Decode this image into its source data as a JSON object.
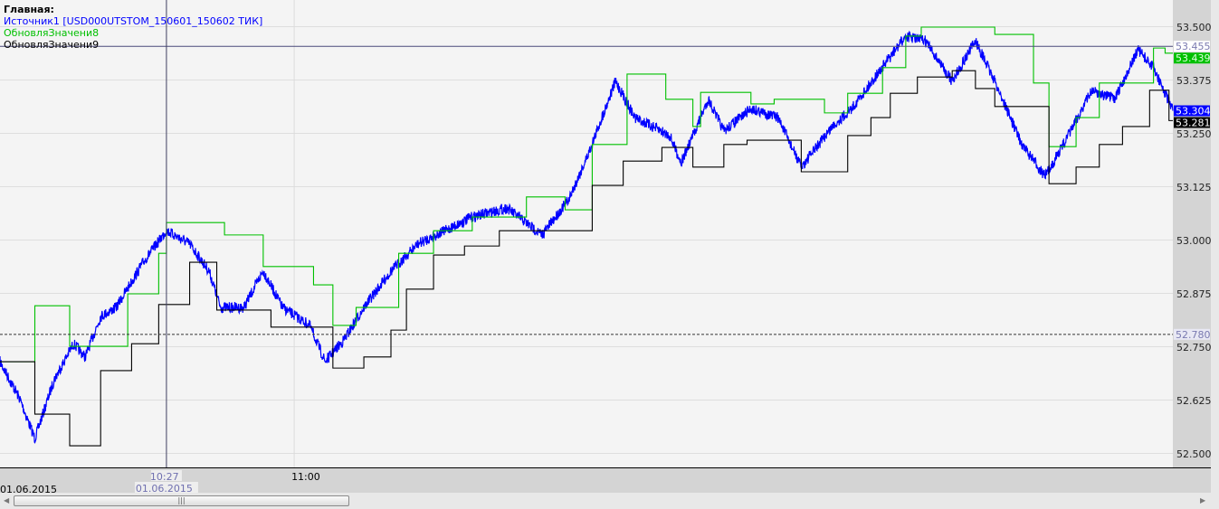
{
  "legend": {
    "title": "Главная:",
    "items": [
      {
        "label": "Источник1 [USD000UTSTOM_150601_150602 ТИК]",
        "color": "#0000ff"
      },
      {
        "label": "ОбновляЗначени8",
        "color": "#00c000"
      },
      {
        "label": "ОбновляЗначени9",
        "color": "#000000"
      }
    ]
  },
  "chart_data": {
    "type": "line",
    "ylim": [
      52.5,
      53.5
    ],
    "xlim": [
      "09:44",
      "14:47"
    ],
    "y_ticks": [
      "53.500",
      "53.375",
      "53.250",
      "53.125",
      "53.000",
      "52.875",
      "52.750",
      "52.625",
      "52.500"
    ],
    "x_ticks": [
      {
        "time": "11:00",
        "label": "11:00"
      }
    ],
    "x_start_label": "01.06.2015",
    "grid": true,
    "crosshair": {
      "time": "10:27",
      "time_label": "10:27",
      "date_label": "01.06.2015"
    },
    "hlines": [
      {
        "value": 53.455,
        "label": "53.455",
        "color": "#4a4a7a",
        "style": "solid"
      },
      {
        "value": 52.78,
        "label": "52.780",
        "color": "#333333",
        "style": "dashed"
      }
    ],
    "series": [
      {
        "name": "Источник1 [USD000UTSTOM_150601_150602 ТИК]",
        "color": "#0000ff",
        "kind": "tick",
        "last_label": "53.304",
        "points": [
          [
            "09:44",
            52.716
          ],
          [
            "09:49",
            52.631
          ],
          [
            "09:53",
            52.536
          ],
          [
            "09:58",
            52.674
          ],
          [
            "10:03",
            52.758
          ],
          [
            "10:06",
            52.727
          ],
          [
            "10:10",
            52.822
          ],
          [
            "10:14",
            52.843
          ],
          [
            "10:21",
            52.949
          ],
          [
            "10:27",
            53.023
          ],
          [
            "10:33",
            52.992
          ],
          [
            "10:38",
            52.928
          ],
          [
            "10:41",
            52.843
          ],
          [
            "10:47",
            52.843
          ],
          [
            "10:52",
            52.928
          ],
          [
            "10:57",
            52.843
          ],
          [
            "11:04",
            52.801
          ],
          [
            "11:08",
            52.716
          ],
          [
            "11:13",
            52.769
          ],
          [
            "11:18",
            52.843
          ],
          [
            "11:25",
            52.928
          ],
          [
            "11:32",
            52.992
          ],
          [
            "11:39",
            53.023
          ],
          [
            "11:46",
            53.055
          ],
          [
            "11:55",
            53.076
          ],
          [
            "12:04",
            53.013
          ],
          [
            "12:11",
            53.097
          ],
          [
            "12:16",
            53.203
          ],
          [
            "12:23",
            53.373
          ],
          [
            "12:28",
            53.288
          ],
          [
            "12:37",
            53.246
          ],
          [
            "12:40",
            53.182
          ],
          [
            "12:47",
            53.331
          ],
          [
            "12:51",
            53.256
          ],
          [
            "12:58",
            53.309
          ],
          [
            "13:05",
            53.288
          ],
          [
            "13:11",
            53.172
          ],
          [
            "13:19",
            53.267
          ],
          [
            "13:24",
            53.309
          ],
          [
            "13:31",
            53.394
          ],
          [
            "13:38",
            53.479
          ],
          [
            "13:43",
            53.468
          ],
          [
            "13:50",
            53.373
          ],
          [
            "13:56",
            53.468
          ],
          [
            "14:01",
            53.373
          ],
          [
            "14:08",
            53.225
          ],
          [
            "14:14",
            53.15
          ],
          [
            "14:20",
            53.246
          ],
          [
            "14:26",
            53.352
          ],
          [
            "14:32",
            53.331
          ],
          [
            "14:38",
            53.447
          ],
          [
            "14:42",
            53.405
          ],
          [
            "14:47",
            53.304
          ]
        ]
      },
      {
        "name": "ОбновляЗначени8",
        "color": "#00c000",
        "kind": "step",
        "last_label": "53.439",
        "points": [
          [
            "09:44",
            52.716
          ],
          [
            "09:53",
            52.847
          ],
          [
            "10:02",
            52.752
          ],
          [
            "10:17",
            52.875
          ],
          [
            "10:25",
            52.97
          ],
          [
            "10:27",
            53.042
          ],
          [
            "10:42",
            53.013
          ],
          [
            "10:52",
            52.939
          ],
          [
            "11:05",
            52.896
          ],
          [
            "11:10",
            52.801
          ],
          [
            "11:16",
            52.843
          ],
          [
            "11:27",
            52.97
          ],
          [
            "11:36",
            53.023
          ],
          [
            "11:46",
            53.055
          ],
          [
            "12:00",
            53.102
          ],
          [
            "12:10",
            53.072
          ],
          [
            "12:17",
            53.225
          ],
          [
            "12:26",
            53.39
          ],
          [
            "12:36",
            53.331
          ],
          [
            "12:43",
            53.267
          ],
          [
            "12:45",
            53.347
          ],
          [
            "12:58",
            53.32
          ],
          [
            "13:04",
            53.331
          ],
          [
            "13:17",
            53.299
          ],
          [
            "13:23",
            53.345
          ],
          [
            "13:32",
            53.405
          ],
          [
            "13:38",
            53.479
          ],
          [
            "13:42",
            53.5
          ],
          [
            "14:01",
            53.483
          ],
          [
            "14:11",
            53.369
          ],
          [
            "14:15",
            53.22
          ],
          [
            "14:22",
            53.288
          ],
          [
            "14:28",
            53.369
          ],
          [
            "14:42",
            53.451
          ],
          [
            "14:45",
            53.439
          ],
          [
            "14:47",
            53.439
          ]
        ]
      },
      {
        "name": "ОбновляЗначени9",
        "color": "#000000",
        "kind": "step",
        "last_label": "53.281",
        "points": [
          [
            "09:44",
            52.716
          ],
          [
            "09:53",
            52.593
          ],
          [
            "10:02",
            52.519
          ],
          [
            "10:10",
            52.695
          ],
          [
            "10:18",
            52.758
          ],
          [
            "10:25",
            52.85
          ],
          [
            "10:33",
            52.949
          ],
          [
            "10:40",
            52.837
          ],
          [
            "10:54",
            52.797
          ],
          [
            "11:10",
            52.701
          ],
          [
            "11:18",
            52.727
          ],
          [
            "11:25",
            52.79
          ],
          [
            "11:29",
            52.886
          ],
          [
            "11:36",
            52.966
          ],
          [
            "11:44",
            52.987
          ],
          [
            "11:53",
            53.023
          ],
          [
            "12:17",
            53.129
          ],
          [
            "12:25",
            53.186
          ],
          [
            "12:35",
            53.218
          ],
          [
            "12:43",
            53.172
          ],
          [
            "12:51",
            53.225
          ],
          [
            "12:57",
            53.235
          ],
          [
            "13:11",
            53.161
          ],
          [
            "13:23",
            53.246
          ],
          [
            "13:29",
            53.288
          ],
          [
            "13:34",
            53.345
          ],
          [
            "13:41",
            53.383
          ],
          [
            "13:50",
            53.398
          ],
          [
            "13:56",
            53.356
          ],
          [
            "14:01",
            53.314
          ],
          [
            "14:15",
            53.133
          ],
          [
            "14:22",
            53.172
          ],
          [
            "14:28",
            53.225
          ],
          [
            "14:34",
            53.267
          ],
          [
            "14:41",
            53.352
          ],
          [
            "14:46",
            53.281
          ],
          [
            "14:47",
            53.281
          ]
        ]
      }
    ]
  },
  "scrollbar": {
    "grip": "|||"
  }
}
